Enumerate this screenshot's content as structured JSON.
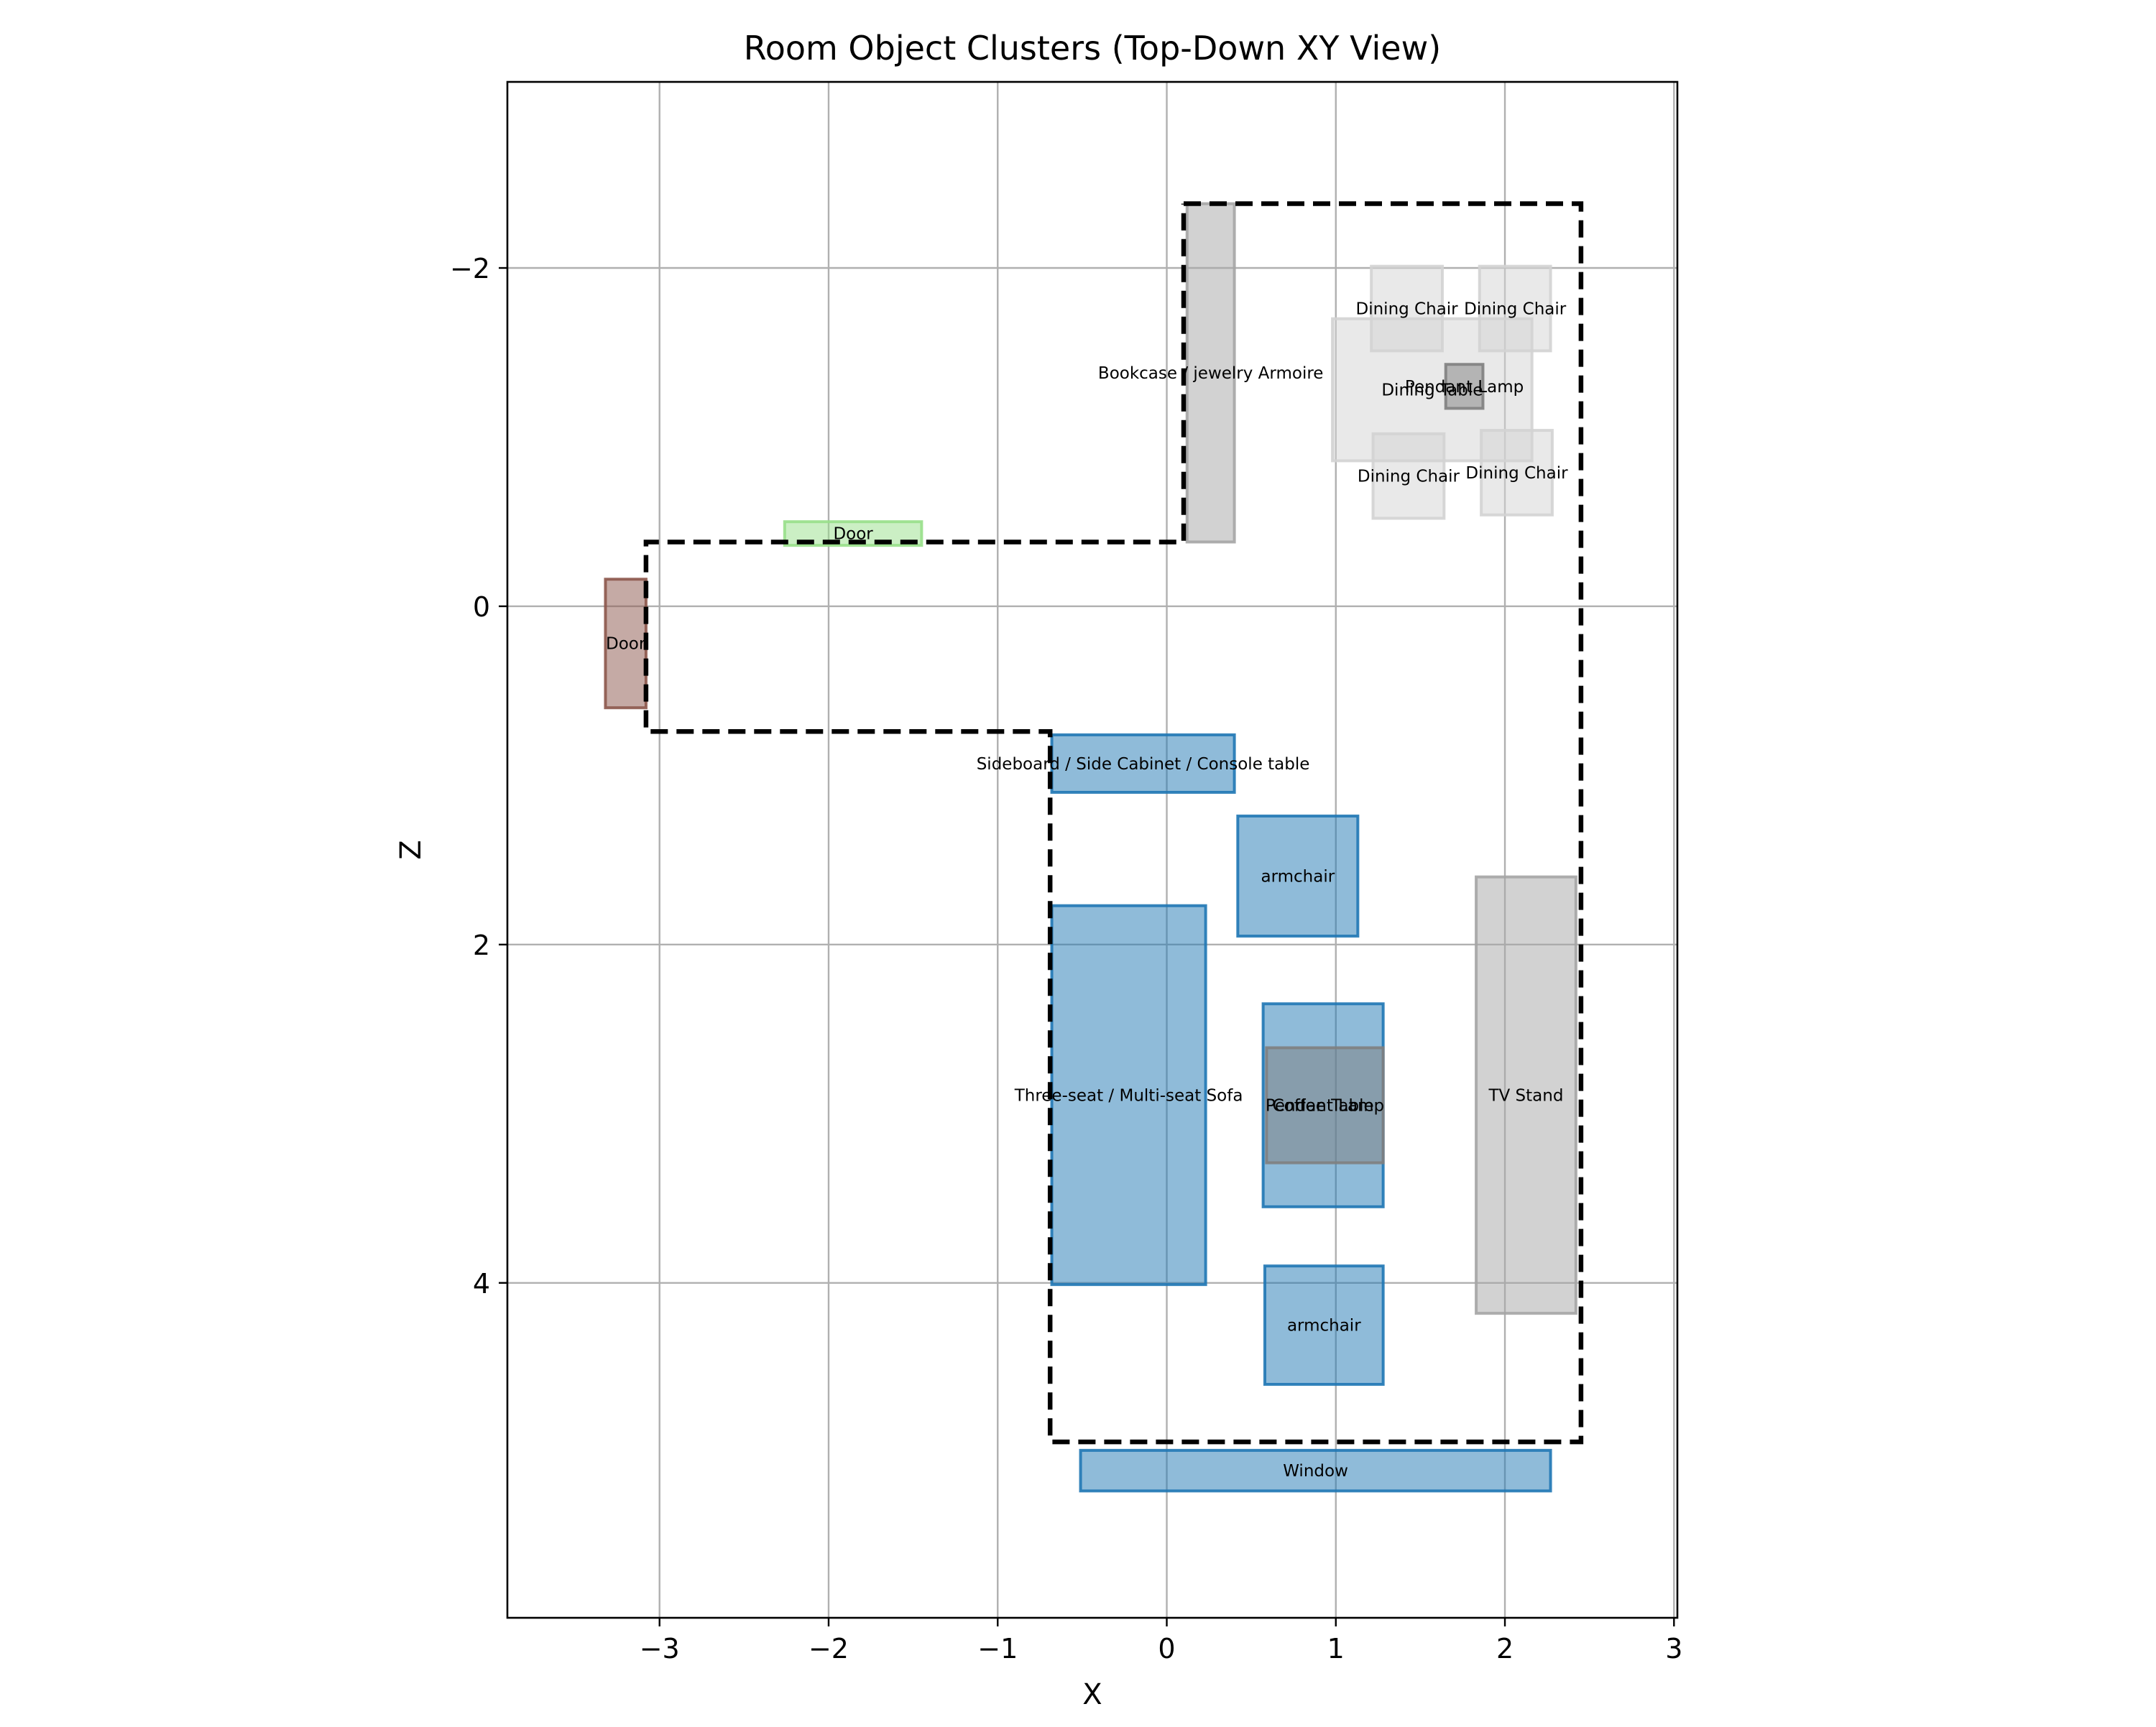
{
  "chart_data": {
    "type": "floorplan",
    "title": "Room Object Clusters (Top-Down XY View)",
    "xlabel": "X",
    "ylabel": "Z",
    "xlim": [
      -3.9,
      3.02
    ],
    "ylim": [
      5.98,
      -3.1
    ],
    "y_inverted": true,
    "grid": true,
    "xticks": [
      -3,
      -2,
      -1,
      0,
      1,
      2,
      3
    ],
    "xtick_labels": [
      "−3",
      "−2",
      "−1",
      "0",
      "1",
      "2",
      "3"
    ],
    "yticks": [
      -2,
      0,
      2,
      4
    ],
    "ytick_labels": [
      "−2",
      "0",
      "2",
      "4"
    ],
    "room_outline": [
      [
        0.1,
        -2.38
      ],
      [
        2.45,
        -2.38
      ],
      [
        2.45,
        4.94
      ],
      [
        -0.69,
        4.94
      ],
      [
        -0.69,
        0.74
      ],
      [
        -3.08,
        0.74
      ],
      [
        -3.08,
        -0.38
      ],
      [
        0.1,
        -0.38
      ],
      [
        0.1,
        -2.38
      ]
    ],
    "objects": [
      {
        "label": "Door",
        "x0": -3.32,
        "x1": -3.08,
        "z0": -0.16,
        "z1": 0.6,
        "color": "#8c564b"
      },
      {
        "label": "Door",
        "x0": -2.26,
        "x1": -1.45,
        "z0": -0.5,
        "z1": -0.36,
        "color": "#98df8a"
      },
      {
        "label": "Bookcase / jewelry Armoire",
        "x0": 0.12,
        "x1": 0.4,
        "z0": -2.38,
        "z1": -0.38,
        "color": "#a5a5a5"
      },
      {
        "label": "Dining Table",
        "x0": 0.98,
        "x1": 2.16,
        "z0": -1.7,
        "z1": -0.86,
        "color": "#d3d3d3"
      },
      {
        "label": "Dining Chair",
        "x0": 1.21,
        "x1": 1.63,
        "z0": -2.01,
        "z1": -1.51,
        "color": "#d3d3d3"
      },
      {
        "label": "Dining Chair",
        "x0": 1.85,
        "x1": 2.27,
        "z0": -2.01,
        "z1": -1.51,
        "color": "#d3d3d3"
      },
      {
        "label": "Dining Chair",
        "x0": 1.22,
        "x1": 1.64,
        "z0": -1.02,
        "z1": -0.52,
        "color": "#d3d3d3"
      },
      {
        "label": "Dining Chair",
        "x0": 1.86,
        "x1": 2.28,
        "z0": -1.04,
        "z1": -0.54,
        "color": "#d3d3d3"
      },
      {
        "label": "Pendant Lamp",
        "x0": 1.65,
        "x1": 1.87,
        "z0": -1.43,
        "z1": -1.17,
        "color": "#7f7f7f"
      },
      {
        "label": "Sideboard / Side Cabinet / Console table",
        "x0": -0.68,
        "x1": 0.4,
        "z0": 0.76,
        "z1": 1.1,
        "color": "#1f77b4"
      },
      {
        "label": "armchair",
        "x0": 0.42,
        "x1": 1.13,
        "z0": 1.24,
        "z1": 1.95,
        "color": "#1f77b4"
      },
      {
        "label": "Three-seat / Multi-seat Sofa",
        "x0": -0.68,
        "x1": 0.23,
        "z0": 1.77,
        "z1": 4.01,
        "color": "#1f77b4"
      },
      {
        "label": "Coffee Table",
        "x0": 0.57,
        "x1": 1.28,
        "z0": 2.35,
        "z1": 3.55,
        "color": "#1f77b4"
      },
      {
        "label": "Pendant Lamp",
        "x0": 0.59,
        "x1": 1.28,
        "z0": 2.61,
        "z1": 3.29,
        "color": "#7f7f7f"
      },
      {
        "label": "armchair",
        "x0": 0.58,
        "x1": 1.28,
        "z0": 3.9,
        "z1": 4.6,
        "color": "#1f77b4"
      },
      {
        "label": "TV Stand",
        "x0": 1.83,
        "x1": 2.42,
        "z0": 1.6,
        "z1": 4.18,
        "color": "#a5a5a5"
      },
      {
        "label": "Window",
        "x0": -0.51,
        "x1": 2.27,
        "z0": 4.99,
        "z1": 5.23,
        "color": "#1f77b4"
      }
    ]
  }
}
